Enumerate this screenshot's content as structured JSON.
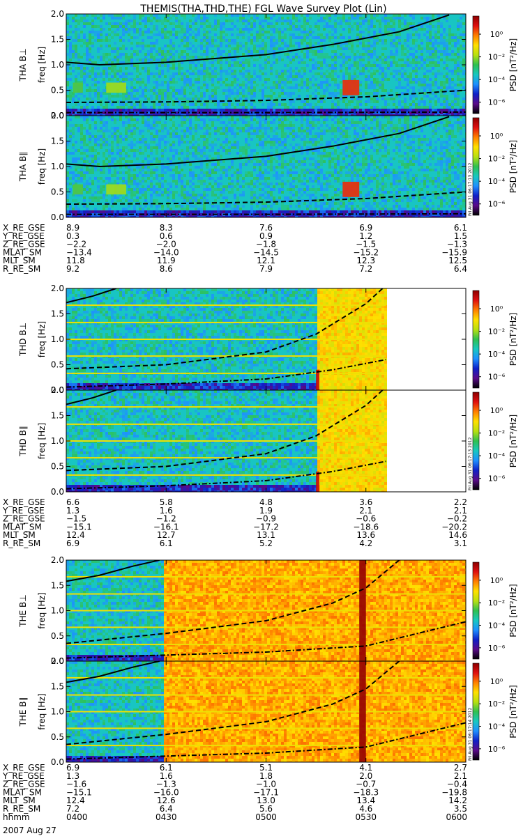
{
  "title": "THEMIS(THA,THD,THE) FGL Wave Survey Plot (Lin)",
  "colorbar": {
    "label": "PSD [nT²/Hz]",
    "ticks": [
      "10⁰",
      "10⁻²",
      "10⁻⁴",
      "10⁻⁶"
    ],
    "colors": [
      "#000000",
      "#5a0a8a",
      "#1020c8",
      "#1e90ff",
      "#18c8c0",
      "#30c050",
      "#b8e010",
      "#ffe000",
      "#ff8000",
      "#e01010",
      "#8c0000"
    ]
  },
  "freq_ticks": [
    "0.0",
    "0.5",
    "1.0",
    "1.5",
    "2.0"
  ],
  "chart_data": [
    {
      "type": "heatmap",
      "id": "tha",
      "probe": "THA",
      "panels": [
        {
          "label": "THA B⊥",
          "ylabel": "freq [Hz]"
        },
        {
          "label": "THA B∥",
          "ylabel": "freq [Hz]"
        }
      ],
      "x": [
        "04:00",
        "04:30",
        "05:00",
        "05:30",
        "06:00"
      ],
      "ylim": [
        0,
        2
      ],
      "background_log_psd": -3.6,
      "events": [
        {
          "start": "04:02",
          "end": "04:05",
          "fmin": 0.45,
          "fmax": 0.65,
          "log_psd": -2.5
        },
        {
          "start": "04:12",
          "end": "04:18",
          "fmin": 0.45,
          "fmax": 0.65,
          "log_psd": -2.0
        },
        {
          "start": "05:23",
          "end": "05:28",
          "fmin": 0.4,
          "fmax": 0.7,
          "log_psd": 0.5
        }
      ],
      "lines": [
        {
          "style": "solid",
          "x": [
            "04:00",
            "04:10",
            "04:30",
            "05:00",
            "05:20",
            "05:40",
            "05:55"
          ],
          "y": [
            1.05,
            1.0,
            1.05,
            1.2,
            1.4,
            1.65,
            1.98
          ]
        },
        {
          "style": "dashed",
          "x": [
            "04:00",
            "04:30",
            "05:00",
            "05:30",
            "06:00"
          ],
          "y": [
            0.26,
            0.27,
            0.3,
            0.37,
            0.5
          ]
        },
        {
          "style": "dash-dot",
          "x": [
            "04:00",
            "05:00",
            "06:00"
          ],
          "y": [
            0.06,
            0.06,
            0.07
          ]
        }
      ],
      "stamp": "Fri Aug 31 06:17:13 2012",
      "ephemeris": {
        "labels": [
          "X_RE_GSE",
          "Y_RE_GSE",
          "Z_RE_GSE",
          "MLAT_SM",
          "MLT_SM",
          "R_RE_SM"
        ],
        "values": [
          [
            "8.9",
            "8.3",
            "7.6",
            "6.9",
            "6.1"
          ],
          [
            "0.3",
            "0.6",
            "0.9",
            "1.2",
            "1.5"
          ],
          [
            "−2.2",
            "−2.0",
            "−1.8",
            "−1.5",
            "−1.3"
          ],
          [
            "−13.4",
            "−14.0",
            "−14.5",
            "−15.2",
            "−15.9"
          ],
          [
            "11.8",
            "11.9",
            "12.1",
            "12.3",
            "12.5"
          ],
          [
            "9.2",
            "8.6",
            "7.9",
            "7.2",
            "6.4"
          ]
        ]
      }
    },
    {
      "type": "heatmap",
      "id": "thd",
      "probe": "THD",
      "panels": [
        {
          "label": "THD B⊥",
          "ylabel": "freq [Hz]"
        },
        {
          "label": "THD B∥",
          "ylabel": "freq [Hz]"
        }
      ],
      "x": [
        "04:00",
        "04:30",
        "05:00",
        "05:30",
        "06:00"
      ],
      "ylim": [
        0,
        2
      ],
      "background_log_psd": -3.6,
      "data_end": "05:36",
      "enhanced": [
        {
          "start": "05:15",
          "end": "05:36",
          "log_psd": -1.0
        }
      ],
      "events": [
        {
          "start": "05:15",
          "end": "05:16",
          "fmin": 0.0,
          "fmax": 0.4,
          "log_psd": 1.0
        }
      ],
      "harmonics_hz": [
        0.33,
        0.67,
        1.0,
        1.33,
        1.67
      ],
      "lines": [
        {
          "style": "solid",
          "x": [
            "04:00",
            "04:08",
            "04:15"
          ],
          "y": [
            1.72,
            1.85,
            2.0
          ]
        },
        {
          "style": "dashed",
          "x": [
            "04:00",
            "04:30",
            "05:00",
            "05:15",
            "05:30",
            "05:35"
          ],
          "y": [
            0.42,
            0.5,
            0.75,
            1.1,
            1.7,
            2.0
          ]
        },
        {
          "style": "dash-dot",
          "x": [
            "04:00",
            "04:30",
            "05:00",
            "05:20",
            "05:36"
          ],
          "y": [
            0.06,
            0.12,
            0.22,
            0.4,
            0.6
          ]
        }
      ],
      "stamp": "Fri Aug 31 06:17:13 2012",
      "ephemeris": {
        "labels": [
          "X_RE_GSE",
          "Y_RE_GSE",
          "Z_RE_GSE",
          "MLAT_SM",
          "MLT_SM",
          "R_RE_SM"
        ],
        "values": [
          [
            "6.6",
            "5.8",
            "4.8",
            "3.6",
            "2.2"
          ],
          [
            "1.3",
            "1.6",
            "1.9",
            "2.1",
            "2.1"
          ],
          [
            "−1.5",
            "−1.2",
            "−0.9",
            "−0.6",
            "−0.2"
          ],
          [
            "−15.1",
            "−16.1",
            "−17.2",
            "−18.6",
            "−20.2"
          ],
          [
            "12.4",
            "12.7",
            "13.1",
            "13.6",
            "14.6"
          ],
          [
            "6.9",
            "6.1",
            "5.2",
            "4.2",
            "3.1"
          ]
        ]
      }
    },
    {
      "type": "heatmap",
      "id": "the",
      "probe": "THE",
      "panels": [
        {
          "label": "THE B⊥",
          "ylabel": "freq [Hz]"
        },
        {
          "label": "THE B∥",
          "ylabel": "freq [Hz]"
        }
      ],
      "x": [
        "04:00",
        "04:30",
        "05:00",
        "05:30",
        "06:00"
      ],
      "ylim": [
        0,
        2
      ],
      "background_log_psd": -3.6,
      "enhanced": [
        {
          "start": "04:29",
          "end": "06:00",
          "log_psd": -0.5
        }
      ],
      "events": [
        {
          "start": "05:28",
          "end": "05:30",
          "fmin": 0.0,
          "fmax": 2.0,
          "log_psd": 1.5
        }
      ],
      "harmonics_hz": [
        0.33,
        0.67,
        1.0,
        1.33,
        1.67
      ],
      "lines": [
        {
          "style": "solid",
          "x": [
            "04:00",
            "04:10",
            "04:20",
            "04:28"
          ],
          "y": [
            1.58,
            1.7,
            1.88,
            2.0
          ]
        },
        {
          "style": "dashed",
          "x": [
            "04:00",
            "04:30",
            "05:00",
            "05:20",
            "05:30",
            "05:40"
          ],
          "y": [
            0.35,
            0.55,
            0.8,
            1.15,
            1.45,
            2.0
          ]
        },
        {
          "style": "dash-dot",
          "x": [
            "04:00",
            "04:30",
            "05:00",
            "05:30",
            "06:00"
          ],
          "y": [
            0.06,
            0.12,
            0.18,
            0.3,
            0.78
          ]
        }
      ],
      "stamp": "Fri Aug 31 06:17:14 2012",
      "ephemeris": {
        "labels": [
          "X_RE_GSE",
          "Y_RE_GSE",
          "Z_RE_GSE",
          "MLAT_SM",
          "MLT_SM",
          "R_RE_SM",
          "hhmm"
        ],
        "values": [
          [
            "6.9",
            "6.1",
            "5.1",
            "4.1",
            "2.7"
          ],
          [
            "1.3",
            "1.6",
            "1.8",
            "2.0",
            "2.1"
          ],
          [
            "−1.6",
            "−1.3",
            "−1.0",
            "−0.7",
            "−0.4"
          ],
          [
            "−15.1",
            "−16.0",
            "−17.1",
            "−18.3",
            "−19.8"
          ],
          [
            "12.4",
            "12.6",
            "13.0",
            "13.4",
            "14.2"
          ],
          [
            "7.2",
            "6.4",
            "5.6",
            "4.6",
            "3.5"
          ],
          [
            "0400",
            "0430",
            "0500",
            "0530",
            "0600"
          ]
        ]
      }
    }
  ],
  "date": "2007 Aug 27"
}
